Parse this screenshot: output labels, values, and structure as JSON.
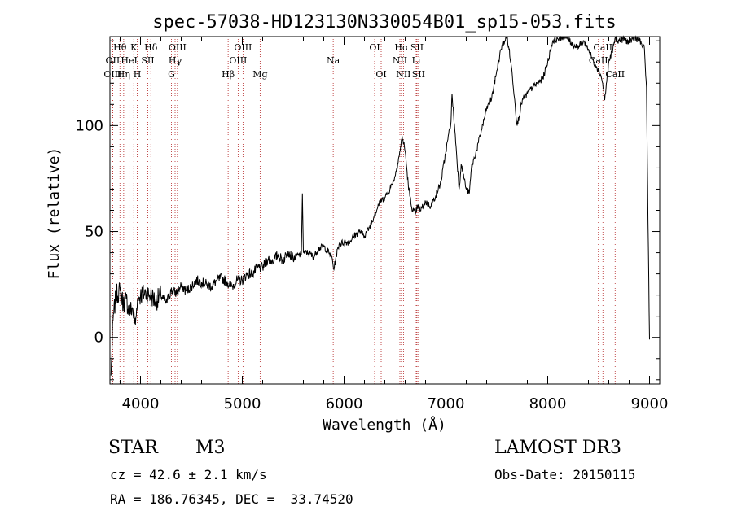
{
  "chart_data": {
    "type": "line",
    "title": "spec-57038-HD123130N330054B01_sp15-053.fits",
    "xlabel": "Wavelength (Å)",
    "ylabel": "Flux (relative)",
    "xlim": [
      3700,
      9100
    ],
    "ylim": [
      -22,
      142
    ],
    "xticks": [
      4000,
      5000,
      6000,
      7000,
      8000,
      9000
    ],
    "yticks": [
      0,
      50,
      100
    ],
    "series": [
      {
        "name": "spectrum",
        "x": [
          3710,
          3730,
          3760,
          3800,
          3830,
          3860,
          3890,
          3920,
          3950,
          3970,
          4000,
          4050,
          4100,
          4150,
          4200,
          4250,
          4300,
          4350,
          4400,
          4450,
          4500,
          4550,
          4600,
          4650,
          4700,
          4750,
          4800,
          4850,
          4900,
          4950,
          5000,
          5050,
          5100,
          5150,
          5200,
          5250,
          5300,
          5350,
          5400,
          5450,
          5500,
          5550,
          5580,
          5590,
          5600,
          5650,
          5700,
          5750,
          5800,
          5850,
          5880,
          5900,
          5920,
          5950,
          6000,
          6050,
          6100,
          6150,
          6200,
          6250,
          6300,
          6350,
          6400,
          6450,
          6500,
          6550,
          6570,
          6600,
          6630,
          6660,
          6700,
          6720,
          6750,
          6800,
          6850,
          6900,
          6950,
          7000,
          7050,
          7060,
          7100,
          7130,
          7150,
          7200,
          7230,
          7250,
          7300,
          7350,
          7400,
          7450,
          7500,
          7550,
          7580,
          7600,
          7620,
          7650,
          7680,
          7700,
          7750,
          7800,
          7850,
          7900,
          7950,
          8000,
          8050,
          8100,
          8150,
          8200,
          8250,
          8300,
          8350,
          8400,
          8450,
          8480,
          8500,
          8520,
          8540,
          8560,
          8600,
          8640,
          8660,
          8700,
          8750,
          8800,
          8850,
          8900,
          8950,
          8970,
          8985,
          9000
        ],
        "values": [
          -18,
          8,
          20,
          22,
          16,
          18,
          12,
          14,
          6,
          18,
          20,
          21,
          20,
          17,
          20,
          16,
          22,
          21,
          24,
          22,
          24,
          27,
          26,
          25,
          24,
          27,
          28,
          26,
          24,
          27,
          27,
          30,
          30,
          33,
          33,
          37,
          36,
          39,
          36,
          41,
          37,
          39,
          39,
          68,
          40,
          40,
          38,
          42,
          43,
          40,
          38,
          32,
          38,
          44,
          45,
          45,
          48,
          50,
          48,
          52,
          58,
          64,
          66,
          70,
          76,
          88,
          95,
          88,
          72,
          62,
          58,
          62,
          60,
          64,
          62,
          67,
          73,
          88,
          102,
          115,
          90,
          70,
          82,
          70,
          68,
          80,
          88,
          98,
          108,
          113,
          126,
          138,
          140,
          142,
          136,
          125,
          110,
          100,
          112,
          115,
          118,
          120,
          122,
          130,
          140,
          141,
          142,
          141,
          138,
          137,
          140,
          136,
          130,
          128,
          126,
          124,
          120,
          112,
          130,
          136,
          141,
          140,
          141,
          139,
          142,
          140,
          136,
          118,
          55,
          -1
        ]
      }
    ],
    "emission_lines": [
      {
        "label": "Hθ",
        "row": 1,
        "wavelength": 3798
      },
      {
        "label": "K",
        "row": 1,
        "wavelength": 3934
      },
      {
        "label": "Hδ",
        "row": 1,
        "wavelength": 4102
      },
      {
        "label": "OIII",
        "row": 1,
        "wavelength": 4363
      },
      {
        "label": "OIII",
        "row": 1,
        "wavelength": 5007
      },
      {
        "label": "OI",
        "row": 1,
        "wavelength": 6300
      },
      {
        "label": "Hα",
        "row": 1,
        "wavelength": 6563
      },
      {
        "label": "SII",
        "row": 1,
        "wavelength": 6716
      },
      {
        "label": "CaII",
        "row": 1,
        "wavelength": 8542
      },
      {
        "label": "OII",
        "row": 2,
        "wavelength": 3727
      },
      {
        "label": "HeI",
        "row": 2,
        "wavelength": 3889
      },
      {
        "label": "SII",
        "row": 2,
        "wavelength": 4072
      },
      {
        "label": "Hγ",
        "row": 2,
        "wavelength": 4340
      },
      {
        "label": "OIII",
        "row": 2,
        "wavelength": 4959
      },
      {
        "label": "Na",
        "row": 2,
        "wavelength": 5893
      },
      {
        "label": "NII",
        "row": 2,
        "wavelength": 6548
      },
      {
        "label": "Li",
        "row": 2,
        "wavelength": 6708
      },
      {
        "label": "CaII",
        "row": 2,
        "wavelength": 8498
      },
      {
        "label": "OIII",
        "row": 3,
        "wavelength": 3727
      },
      {
        "label": "Hη",
        "row": 3,
        "wavelength": 3835
      },
      {
        "label": "H",
        "row": 3,
        "wavelength": 3968
      },
      {
        "label": "G",
        "row": 3,
        "wavelength": 4304
      },
      {
        "label": "Hβ",
        "row": 3,
        "wavelength": 4861
      },
      {
        "label": "Mg",
        "row": 3,
        "wavelength": 5175
      },
      {
        "label": "OI",
        "row": 3,
        "wavelength": 6364
      },
      {
        "label": "NII",
        "row": 3,
        "wavelength": 6583
      },
      {
        "label": "SII",
        "row": 3,
        "wavelength": 6731
      },
      {
        "label": "CaII",
        "row": 3,
        "wavelength": 8662
      }
    ]
  },
  "object_class": "STAR",
  "subclass": "M3",
  "survey": "LAMOST DR3",
  "redshift_text": "cz = 42.6 ± 2.1 km/s",
  "obs_date_text": "Obs-Date: 20150115",
  "coords_text": "RA = 186.76345, DEC =  33.74520",
  "colors": {
    "line": "#000000",
    "marker": "#b22222",
    "frame": "#000000"
  }
}
